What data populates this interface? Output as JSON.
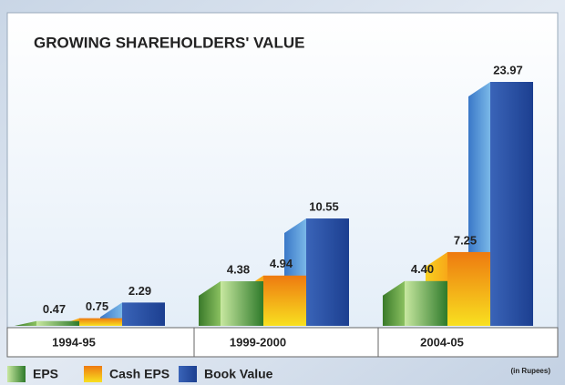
{
  "chart_data": {
    "type": "bar3d",
    "title": "GROWING SHAREHOLDERS' VALUE",
    "categories": [
      "1994-95",
      "1999-2000",
      "2004-05"
    ],
    "series": [
      {
        "name": "EPS",
        "color": "#5a9a3a",
        "values": [
          0.47,
          4.38,
          4.4
        ],
        "value_labels": [
          "0.47",
          "4.38",
          "4.40"
        ]
      },
      {
        "name": "Cash EPS",
        "color": "#f08c10",
        "values": [
          0.75,
          4.94,
          7.25
        ],
        "value_labels": [
          "0.75",
          "4.94",
          "7.25"
        ]
      },
      {
        "name": "Book Value",
        "color": "#2a55a8",
        "values": [
          2.29,
          10.55,
          23.97
        ],
        "value_labels": [
          "2.29",
          "10.55",
          "23.97"
        ]
      }
    ],
    "note": "(in Rupees)"
  }
}
